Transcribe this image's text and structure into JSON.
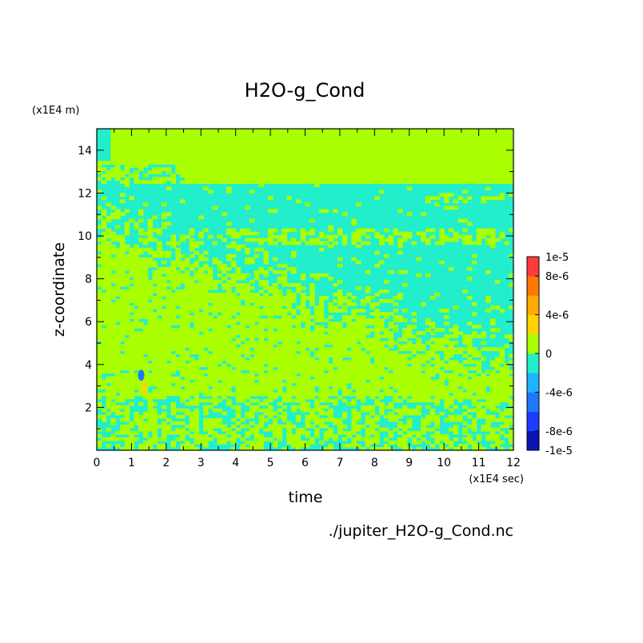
{
  "chart_data": {
    "type": "heatmap",
    "title": "H2O-g_Cond",
    "xlabel": "time",
    "ylabel": "z-coordinate",
    "x_unit": "(x1E4 sec)",
    "y_unit": "(x1E4 m)",
    "xlim": [
      0,
      12
    ],
    "ylim": [
      0,
      15
    ],
    "x_ticks": [
      "0",
      "1",
      "2",
      "3",
      "4",
      "5",
      "6",
      "7",
      "8",
      "9",
      "10",
      "11",
      "12"
    ],
    "y_ticks": [
      "2",
      "4",
      "6",
      "8",
      "10",
      "12",
      "14"
    ],
    "source_label": "./jupiter_H2O-g_Cond.nc",
    "colorbar": {
      "range": [
        -1e-05,
        1e-05
      ],
      "tick_labels": [
        "1e-5",
        "8e-6",
        "4e-6",
        "0",
        "-4e-6",
        "-8e-6",
        "-1e-5"
      ],
      "tick_values": [
        1e-05,
        8e-06,
        4e-06,
        0,
        -4e-06,
        -8e-06,
        -1e-05
      ],
      "levels": [
        -1e-05,
        -8e-06,
        -6e-06,
        -4e-06,
        -2e-06,
        0,
        2e-06,
        4e-06,
        6e-06,
        8e-06,
        1e-05
      ],
      "colors": [
        "#0a14b4",
        "#1e3cff",
        "#1e78ff",
        "#1eb4ff",
        "#22eecc",
        "#aaff00",
        "#ffd200",
        "#ffaa00",
        "#ff7800",
        "#ff3c3c"
      ]
    },
    "regions": [
      {
        "desc": "upper layer above ~12.5",
        "x": [
          2.5,
          12
        ],
        "y": [
          12.5,
          15
        ],
        "value": 1e-06
      },
      {
        "desc": "main mid layer",
        "x": [
          0,
          12
        ],
        "y": [
          3.5,
          12.5
        ],
        "value": -1e-06
      },
      {
        "desc": "condensation band",
        "x": [
          0,
          12
        ],
        "y": [
          2.5,
          3.3
        ],
        "value": 1e-06
      },
      {
        "desc": "noisy lower layer",
        "x": [
          0,
          12
        ],
        "y": [
          0,
          2.5
        ],
        "value": 0
      }
    ],
    "grid": false,
    "legend": "colorbar right"
  }
}
